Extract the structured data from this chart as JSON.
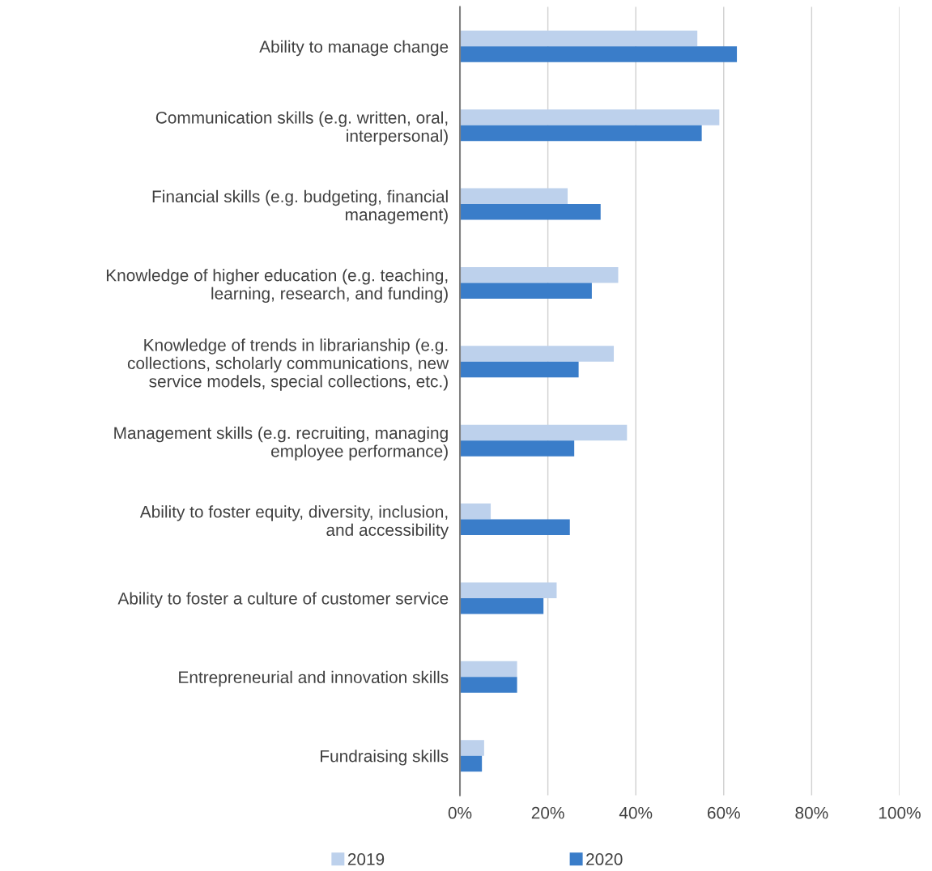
{
  "chart_data": {
    "type": "bar",
    "orientation": "horizontal",
    "categories": [
      "Ability to manage change",
      "Communication skills (e.g. written, oral, interpersonal)",
      "Financial skills (e.g. budgeting, financial management)",
      "Knowledge of higher education (e.g. teaching, learning, research, and funding)",
      "Knowledge of trends in librarianship (e.g. collections, scholarly communications, new service models, special collections, etc.)",
      "Management skills (e.g. recruiting, managing employee performance)",
      "Ability to foster equity, diversity, inclusion, and accessibility",
      "Ability to foster a culture of customer service",
      "Entrepreneurial and innovation skills",
      "Fundraising skills"
    ],
    "series": [
      {
        "name": "2019",
        "color": "#bdd1ec",
        "values": [
          54,
          59,
          24.5,
          36,
          35,
          38,
          7,
          22,
          13,
          5.5
        ]
      },
      {
        "name": "2020",
        "color": "#3a7dc9",
        "values": [
          63,
          55,
          32,
          30,
          27,
          26,
          25,
          19,
          13,
          5
        ]
      }
    ],
    "xlim": [
      0,
      100
    ],
    "xticks": [
      {
        "value": 0,
        "label": "0%"
      },
      {
        "value": 20,
        "label": "20%"
      },
      {
        "value": 40,
        "label": "40%"
      },
      {
        "value": 60,
        "label": "60%"
      },
      {
        "value": 80,
        "label": "80%"
      },
      {
        "value": 100,
        "label": "100%"
      }
    ],
    "grid": "x",
    "legend": "bottom"
  }
}
